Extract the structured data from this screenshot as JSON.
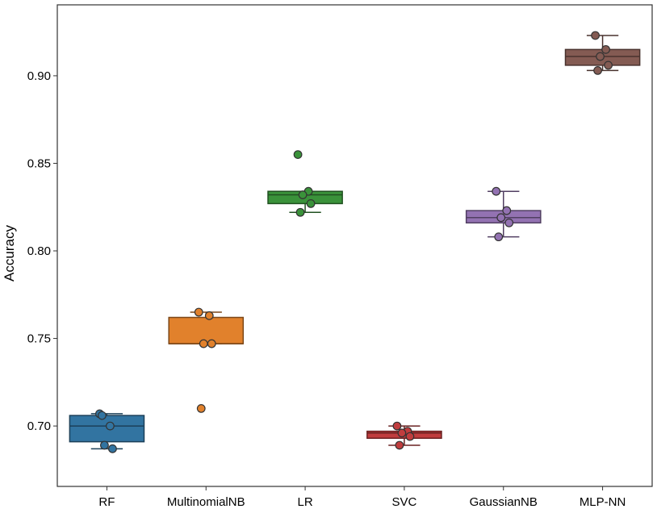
{
  "chart_data": {
    "type": "box",
    "title": "",
    "xlabel": "",
    "ylabel": "Accuracy",
    "ylim": [
      0.6655,
      0.9405
    ],
    "yticks": [
      "0.70",
      "0.75",
      "0.80",
      "0.85",
      "0.90"
    ],
    "grid": false,
    "legend": "none",
    "categories": [
      "RF",
      "MultinomialNB",
      "LR",
      "SVC",
      "GaussianNB",
      "MLP-NN"
    ],
    "colors": [
      "#3274a1",
      "#e1812c",
      "#3a923a",
      "#c03d3e",
      "#9372b2",
      "#845b53"
    ],
    "boxes": [
      {
        "whisker_low": 0.687,
        "q1": 0.691,
        "median": 0.7,
        "q3": 0.706,
        "whisker_high": 0.707
      },
      {
        "whisker_low": 0.747,
        "q1": 0.747,
        "median": 0.747,
        "q3": 0.762,
        "whisker_high": 0.765
      },
      {
        "whisker_low": 0.822,
        "q1": 0.827,
        "median": 0.832,
        "q3": 0.834,
        "whisker_high": 0.834
      },
      {
        "whisker_low": 0.689,
        "q1": 0.693,
        "median": 0.696,
        "q3": 0.697,
        "whisker_high": 0.7
      },
      {
        "whisker_low": 0.808,
        "q1": 0.816,
        "median": 0.819,
        "q3": 0.823,
        "whisker_high": 0.834
      },
      {
        "whisker_low": 0.903,
        "q1": 0.906,
        "median": 0.911,
        "q3": 0.915,
        "whisker_high": 0.923
      }
    ],
    "points": [
      [
        0.707,
        0.7,
        0.689,
        0.687,
        0.706
      ],
      [
        0.765,
        0.763,
        0.747,
        0.747,
        0.71
      ],
      [
        0.855,
        0.834,
        0.832,
        0.827,
        0.822
      ],
      [
        0.7,
        0.697,
        0.696,
        0.694,
        0.689
      ],
      [
        0.834,
        0.823,
        0.819,
        0.816,
        0.808
      ],
      [
        0.923,
        0.915,
        0.911,
        0.906,
        0.903
      ]
    ]
  }
}
